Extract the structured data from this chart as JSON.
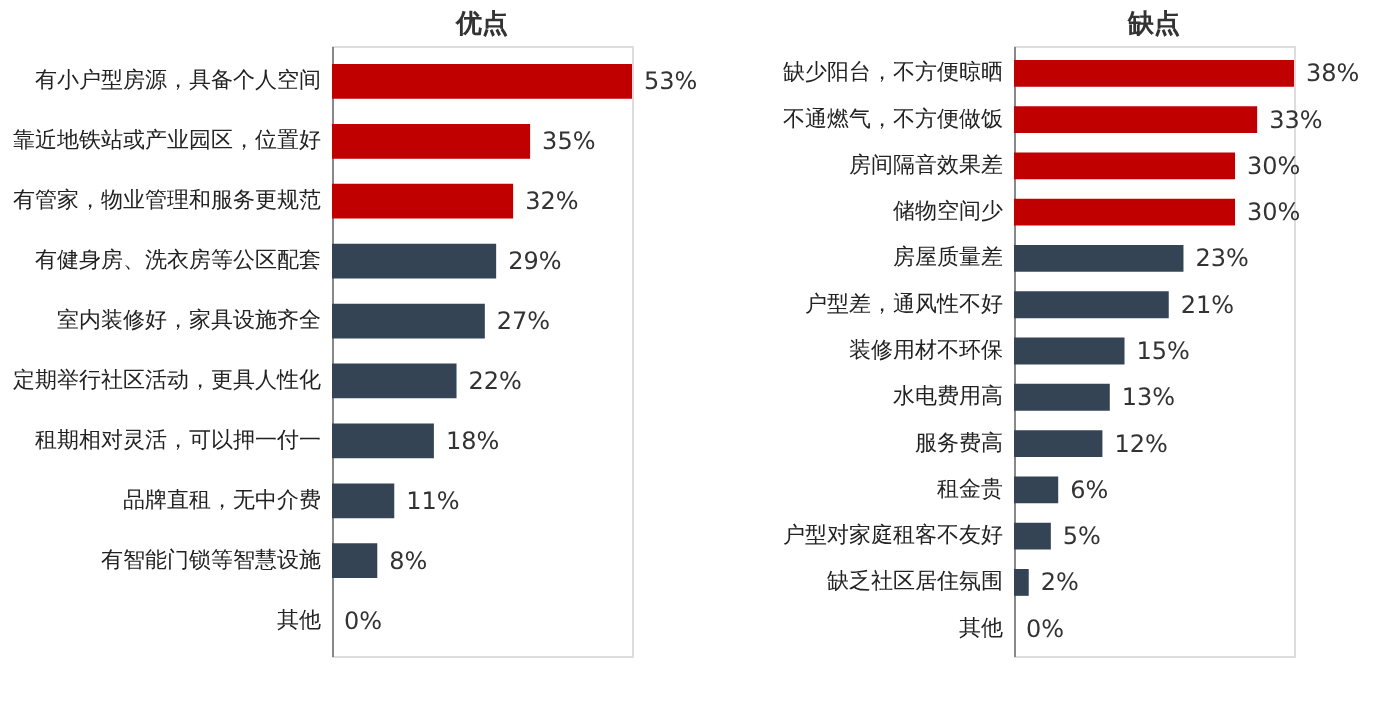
{
  "chart_data": [
    {
      "type": "bar",
      "orientation": "horizontal",
      "title": "优点",
      "categories": [
        "有小户型房源，具备个人空间",
        "靠近地铁站或产业园区，位置好",
        "有管家，物业管理和服务更规范",
        "有健身房、洗衣房等公区配套",
        "室内装修好，家具设施齐全",
        "定期举行社区活动，更具人性化",
        "租期相对灵活，可以押一付一",
        "品牌直租，无中介费",
        "有智能门锁等智慧设施",
        "其他"
      ],
      "values": [
        53,
        35,
        32,
        29,
        27,
        22,
        18,
        11,
        8,
        0
      ],
      "value_labels": [
        "53%",
        "35%",
        "32%",
        "29%",
        "27%",
        "22%",
        "18%",
        "11%",
        "8%",
        "0%"
      ],
      "colors": [
        "#c00000",
        "#c00000",
        "#c00000",
        "#344454",
        "#344454",
        "#344454",
        "#344454",
        "#344454",
        "#344454",
        "#344454"
      ]
    },
    {
      "type": "bar",
      "orientation": "horizontal",
      "title": "缺点",
      "categories": [
        "缺少阳台，不方便晾晒",
        "不通燃气，不方便做饭",
        "房间隔音效果差",
        "储物空间少",
        "房屋质量差",
        "户型差，通风性不好",
        "装修用材不环保",
        "水电费用高",
        "服务费高",
        "租金贵",
        "户型对家庭租客不友好",
        "缺乏社区居住氛围",
        "其他"
      ],
      "values": [
        38,
        33,
        30,
        30,
        23,
        21,
        15,
        13,
        12,
        6,
        5,
        2,
        0
      ],
      "value_labels": [
        "38%",
        "33%",
        "30%",
        "30%",
        "23%",
        "21%",
        "15%",
        "13%",
        "12%",
        "6%",
        "5%",
        "2%",
        "0%"
      ],
      "colors": [
        "#c00000",
        "#c00000",
        "#c00000",
        "#c00000",
        "#344454",
        "#344454",
        "#344454",
        "#344454",
        "#344454",
        "#344454",
        "#344454",
        "#344454",
        "#344454"
      ]
    }
  ]
}
